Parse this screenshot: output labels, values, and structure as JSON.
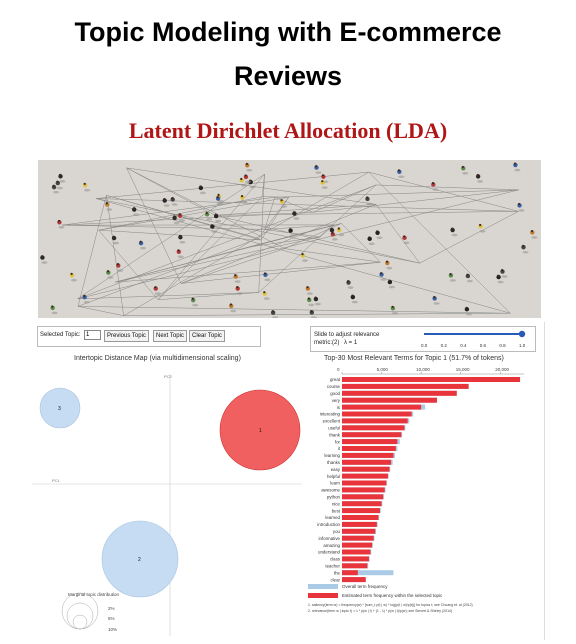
{
  "header": {
    "title_line1": "Topic Modeling with E-commerce",
    "title_line2": "Reviews",
    "subtitle": "Latent Dirichlet Allocation (LDA)"
  },
  "controls": {
    "selected_topic_label": "Selected Topic:",
    "selected_topic_value": "1",
    "prev_button": "Previous Topic",
    "next_button": "Next Topic",
    "clear_button": "Clear Topic",
    "slider_label_line1": "Slide to adjust relevance",
    "slider_label_line2": "metric:(2)",
    "lambda_label": "λ = 1",
    "slider_value": 1.0,
    "slider_ticks": [
      "0.0",
      "0.2",
      "0.4",
      "0.6",
      "0.8",
      "1.0"
    ]
  },
  "intertopic": {
    "title": "Intertopic Distance Map (via multidimensional scaling)",
    "axis_pc1": "PC1",
    "axis_pc2": "PC2",
    "topics": [
      {
        "id": "1",
        "color": "#ee4444"
      },
      {
        "id": "2",
        "color": "#c6dcf2"
      },
      {
        "id": "3",
        "color": "#c6dcf2"
      }
    ],
    "marginal_label": "Marginal topic distribution",
    "marginal_ticks": [
      "2%",
      "5%",
      "10%"
    ]
  },
  "chart_data": {
    "type": "bar",
    "title": "Top-30 Most Relevant Terms for Topic 1 (51.7% of tokens)",
    "axis_ticks": [
      "0",
      "5,000",
      "10,000",
      "15,000",
      "20,000"
    ],
    "xlim": [
      0,
      23000
    ],
    "categories": [
      "great",
      "course",
      "good",
      "very",
      "is",
      "interesting",
      "excellent",
      "useful",
      "thank",
      "for",
      "it",
      "learning",
      "thanks",
      "easy",
      "helpful",
      "learn",
      "awesome",
      "python",
      "nice",
      "best",
      "learned",
      "introduction",
      "you",
      "informative",
      "amazing",
      "understand",
      "class",
      "teacher",
      "the",
      "clear"
    ],
    "series": [
      {
        "name": "Overall term frequency",
        "color": "#a9cbe8",
        "values": [
          22500,
          16000,
          14500,
          12000,
          10500,
          9000,
          8500,
          8000,
          7600,
          7300,
          7000,
          6700,
          6400,
          6100,
          5900,
          5700,
          5500,
          5300,
          5100,
          4900,
          4700,
          4500,
          4300,
          4100,
          3900,
          3700,
          3500,
          3300,
          6500,
          3000
        ]
      },
      {
        "name": "Estimated term frequency within the selected topic",
        "color": "#e8343a",
        "values": [
          22500,
          16000,
          14500,
          12000,
          10000,
          8800,
          8300,
          7900,
          7500,
          7000,
          6800,
          6500,
          6200,
          6000,
          5800,
          5600,
          5400,
          5200,
          5000,
          4800,
          4600,
          4400,
          4200,
          4000,
          3800,
          3600,
          3400,
          3200,
          2000,
          3000
        ]
      }
    ]
  },
  "legend": {
    "overall": "Overall term frequency",
    "estimated": "Estimated term frequency within the selected topic",
    "footnote1": "1. saliency(term w) = frequency(w) * [sum_t p(t | w) * log(p(t | w)/p(t))] for topics t; see Chuang et. al (2012)",
    "footnote2": "2. relevance(term w | topic t) = λ * p(w | t) + (1 - λ) * p(w | t)/p(w); see Sievert & Shirley (2014)"
  }
}
